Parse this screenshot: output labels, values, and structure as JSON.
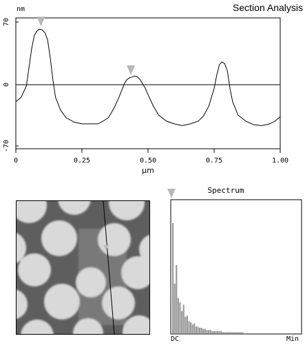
{
  "header": {
    "title": "Section Analysis"
  },
  "profile": {
    "y_unit": "nm",
    "x_unit": "µm",
    "y_ticks": [
      "70",
      "0",
      "-70"
    ],
    "x_ticks": [
      "0",
      "0.25",
      "0.50",
      "0.75",
      "1.00"
    ]
  },
  "chart_data": {
    "type": "line",
    "title": "Section Analysis",
    "xlabel": "µm",
    "ylabel": "nm",
    "xlim": [
      0,
      1.0
    ],
    "ylim": [
      -70,
      70
    ],
    "grid": false,
    "series": [
      {
        "x": [
          0.0,
          0.02,
          0.04,
          0.06,
          0.07,
          0.08,
          0.09,
          0.1,
          0.11,
          0.12,
          0.13,
          0.14,
          0.15,
          0.17,
          0.19,
          0.22,
          0.25,
          0.28,
          0.31,
          0.33,
          0.35,
          0.37,
          0.39,
          0.41,
          0.42,
          0.43,
          0.44,
          0.45,
          0.46,
          0.47,
          0.48,
          0.49,
          0.5,
          0.52,
          0.54,
          0.57,
          0.6,
          0.63,
          0.66,
          0.69,
          0.71,
          0.73,
          0.75,
          0.76,
          0.77,
          0.78,
          0.79,
          0.8,
          0.81,
          0.82,
          0.84,
          0.87,
          0.9,
          0.93,
          0.96,
          0.98,
          1.0
        ],
        "y": [
          -20,
          -15,
          -2,
          40,
          55,
          60,
          62,
          61,
          58,
          50,
          30,
          5,
          -15,
          -30,
          -38,
          -43,
          -45,
          -45,
          -45,
          -42,
          -38,
          -28,
          -15,
          0,
          5,
          7,
          8,
          9,
          8,
          5,
          0,
          -5,
          -12,
          -25,
          -35,
          -42,
          -45,
          -47,
          -45,
          -42,
          -36,
          -25,
          -5,
          10,
          22,
          25,
          23,
          15,
          -5,
          -20,
          -35,
          -42,
          -46,
          -47,
          -45,
          -42,
          -37
        ]
      }
    ],
    "markers_x": [
      0.095,
      0.435
    ]
  },
  "spectrum": {
    "title": "Spectrum",
    "x_start": "DC",
    "x_end": "Min",
    "chart_data": {
      "type": "bar",
      "values": [
        100,
        45,
        62,
        32,
        28,
        20,
        26,
        15,
        16,
        11,
        10,
        8,
        9,
        6,
        6,
        5,
        5,
        4,
        4,
        3,
        3,
        3,
        2,
        2,
        2,
        2,
        2,
        2,
        1,
        1,
        1,
        1,
        1,
        1,
        1,
        1,
        1,
        1,
        1,
        1
      ]
    }
  }
}
